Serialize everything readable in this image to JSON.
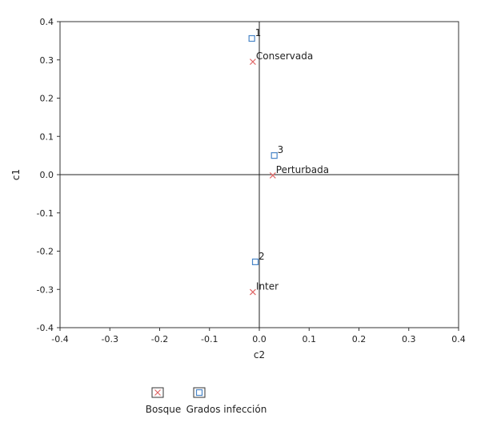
{
  "chart_data": {
    "type": "scatter",
    "xlabel": "c2",
    "ylabel": "c1",
    "xlim": [
      -0.4,
      0.4
    ],
    "ylim": [
      -0.4,
      0.4
    ],
    "xticks": [
      -0.4,
      -0.3,
      -0.2,
      -0.1,
      0.0,
      0.1,
      0.2,
      0.3,
      0.4
    ],
    "yticks": [
      -0.4,
      -0.3,
      -0.2,
      -0.1,
      0.0,
      0.1,
      0.2,
      0.3,
      0.4
    ],
    "xtick_labels": [
      "-0.4",
      "-0.3",
      "-0.2",
      "-0.1",
      "0.0",
      "0.1",
      "0.2",
      "0.3",
      "0.4"
    ],
    "ytick_labels": [
      "-0.4",
      "-0.3",
      "-0.2",
      "-0.1",
      "0.0",
      "0.1",
      "0.2",
      "0.3",
      "0.4"
    ],
    "grid": false,
    "zero_lines": true,
    "legend_position": "bottom-left",
    "series": [
      {
        "name": "Bosque",
        "marker": "x",
        "color": "#e06666",
        "points": [
          {
            "x": -0.013,
            "y": 0.295,
            "label": "Conservada"
          },
          {
            "x": 0.027,
            "y": -0.002,
            "label": "Perturbada"
          },
          {
            "x": -0.013,
            "y": -0.307,
            "label": "Inter"
          }
        ]
      },
      {
        "name": "Grados infección",
        "marker": "square",
        "color": "#4a86c8",
        "points": [
          {
            "x": -0.015,
            "y": 0.356,
            "label": "1"
          },
          {
            "x": 0.03,
            "y": 0.05,
            "label": "3"
          },
          {
            "x": -0.008,
            "y": -0.228,
            "label": "2"
          }
        ]
      }
    ]
  }
}
